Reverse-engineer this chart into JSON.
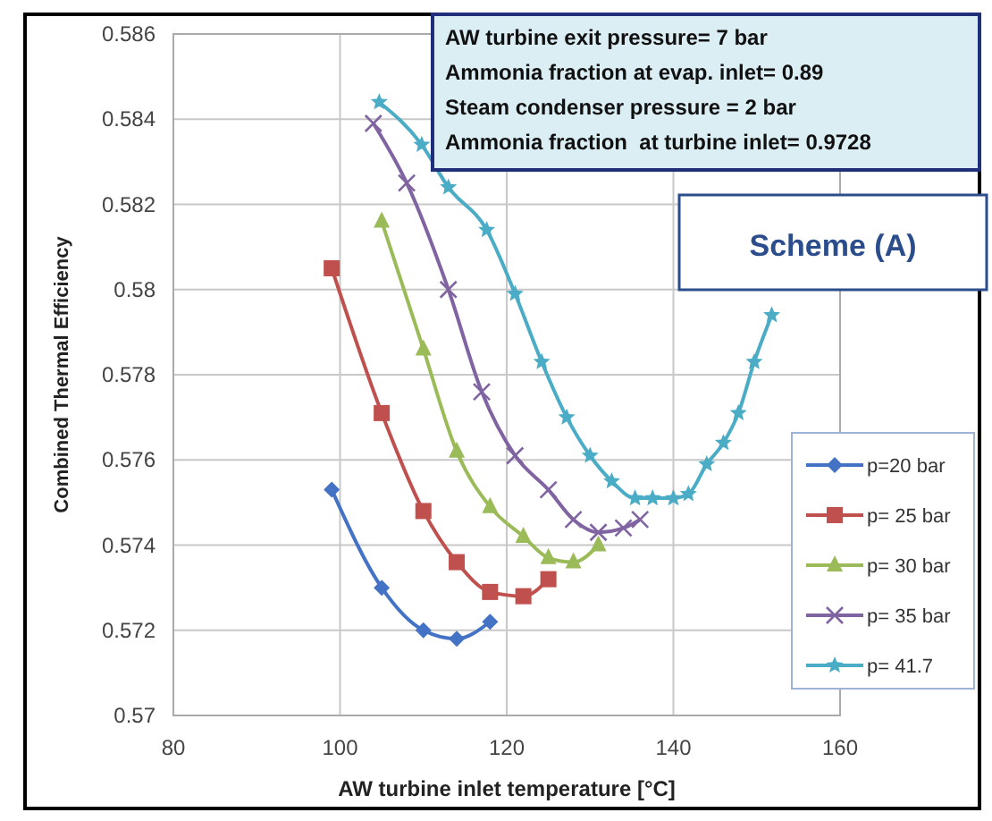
{
  "chart_data": {
    "type": "line",
    "xlabel": "AW turbine inlet temperature [°C]",
    "ylabel": "Combined Thermal Efficiency",
    "annotations": [
      "AW turbine exit pressure= 7 bar\nAmmonia fraction at evap. inlet= 0.89\nSteam condenser pressure = 2 bar\nAmmonia fraction  at turbine inlet= 0.9728",
      "Scheme (A)"
    ],
    "xlim": [
      80,
      160
    ],
    "xticks": [
      80,
      100,
      120,
      140,
      160
    ],
    "ylim": [
      0.57,
      0.586
    ],
    "yticks": [
      0.57,
      0.572,
      0.574,
      0.576,
      0.578,
      0.58,
      0.582,
      0.584,
      0.586
    ],
    "grid": true,
    "legend": "right",
    "series": [
      {
        "name": "p=20 bar",
        "color": "#4472c4",
        "marker": "diamond",
        "x": [
          99,
          105,
          110,
          114,
          118
        ],
        "values": [
          0.5753,
          0.573,
          0.572,
          0.5718,
          0.5722
        ]
      },
      {
        "name": "p= 25 bar",
        "color": "#c0504d",
        "marker": "square",
        "x": [
          99,
          105,
          110,
          114,
          118,
          122,
          125
        ],
        "values": [
          0.5805,
          0.5771,
          0.5748,
          0.5736,
          0.5729,
          0.5728,
          0.5732
        ]
      },
      {
        "name": "p= 30 bar",
        "color": "#9bbb59",
        "marker": "triangle",
        "x": [
          105,
          110,
          114,
          118,
          122,
          125,
          128,
          131
        ],
        "values": [
          0.5816,
          0.5786,
          0.5762,
          0.5749,
          0.5742,
          0.5737,
          0.5736,
          0.574
        ]
      },
      {
        "name": "p= 35 bar",
        "color": "#8064a2",
        "marker": "cross",
        "x": [
          104,
          108,
          113,
          117,
          121,
          125,
          128,
          131,
          134,
          136
        ],
        "values": [
          0.5839,
          0.5825,
          0.58,
          0.5776,
          0.5761,
          0.5753,
          0.5746,
          0.5743,
          0.5744,
          0.5746
        ]
      },
      {
        "name": "p= 41.7",
        "color": "#4bacc6",
        "marker": "star",
        "x": [
          104.7,
          109.8,
          113,
          117.6,
          121,
          124.2,
          127.2,
          130,
          132.6,
          135.4,
          137.5,
          140,
          141.8,
          144,
          146,
          147.8,
          149.7,
          151.8
        ],
        "values": [
          0.5844,
          0.5834,
          0.5824,
          0.5814,
          0.5799,
          0.5783,
          0.577,
          0.5761,
          0.5755,
          0.5751,
          0.5751,
          0.5751,
          0.5752,
          0.5759,
          0.5764,
          0.5771,
          0.5783,
          0.5794
        ]
      }
    ]
  }
}
